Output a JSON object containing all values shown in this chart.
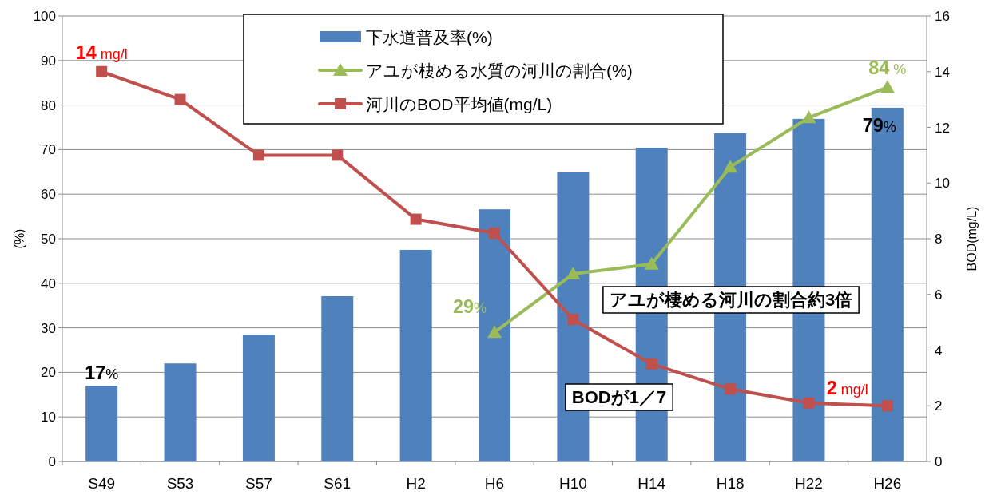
{
  "chart_data": {
    "type": "bar",
    "ylabel": "(%)",
    "y2label": "BOD(mg/L)",
    "categories": [
      "S49",
      "S53",
      "S57",
      "S61",
      "H2",
      "H6",
      "H10",
      "H14",
      "H18",
      "H22",
      "H26"
    ],
    "series": [
      {
        "name": "下水道普及率(%)",
        "color": "#4f81bd",
        "values": [
          17.0,
          22.0,
          28.5,
          37.1,
          47.5,
          56.6,
          64.9,
          70.4,
          73.7,
          76.9,
          79.4
        ],
        "value_labels": [
          "**17**%",
          null,
          null,
          null,
          null,
          null,
          null,
          null,
          null,
          null,
          "**79**%"
        ]
      },
      {
        "name": "アユが棲める水質の河川の割合(%)",
        "type": "line",
        "color": "#9bbb59",
        "marker": "triangle",
        "values": [
          null,
          null,
          null,
          null,
          null,
          29.0,
          42.1,
          44.3,
          66.1,
          77.2,
          84.0
        ],
        "value_labels": [
          null,
          null,
          null,
          null,
          null,
          "**29**%",
          null,
          null,
          null,
          null,
          "**84** %"
        ]
      },
      {
        "name": "河川のBOD平均値(mg/L)",
        "type": "line",
        "axis": "y2",
        "color": "#c0504d",
        "marker": "square",
        "values": [
          14.0,
          13.0,
          11.0,
          11.0,
          8.7,
          8.2,
          5.1,
          3.5,
          2.6,
          2.1,
          2.0
        ],
        "value_labels": [
          "**14** mg/l",
          null,
          null,
          null,
          null,
          null,
          null,
          null,
          null,
          null,
          "**2** mg/l"
        ]
      }
    ],
    "ylim": [
      0,
      100
    ],
    "yticks": [
      0,
      10,
      20,
      30,
      40,
      50,
      60,
      70,
      80,
      90,
      100
    ],
    "y2lim": [
      0,
      16
    ],
    "y2ticks": [
      0,
      2,
      4,
      6,
      8,
      10,
      12,
      14,
      16
    ],
    "grid": "y",
    "legend": "top",
    "annotations": [
      "アユが棲める河川の割合約3倍",
      "BODが1／7"
    ]
  }
}
